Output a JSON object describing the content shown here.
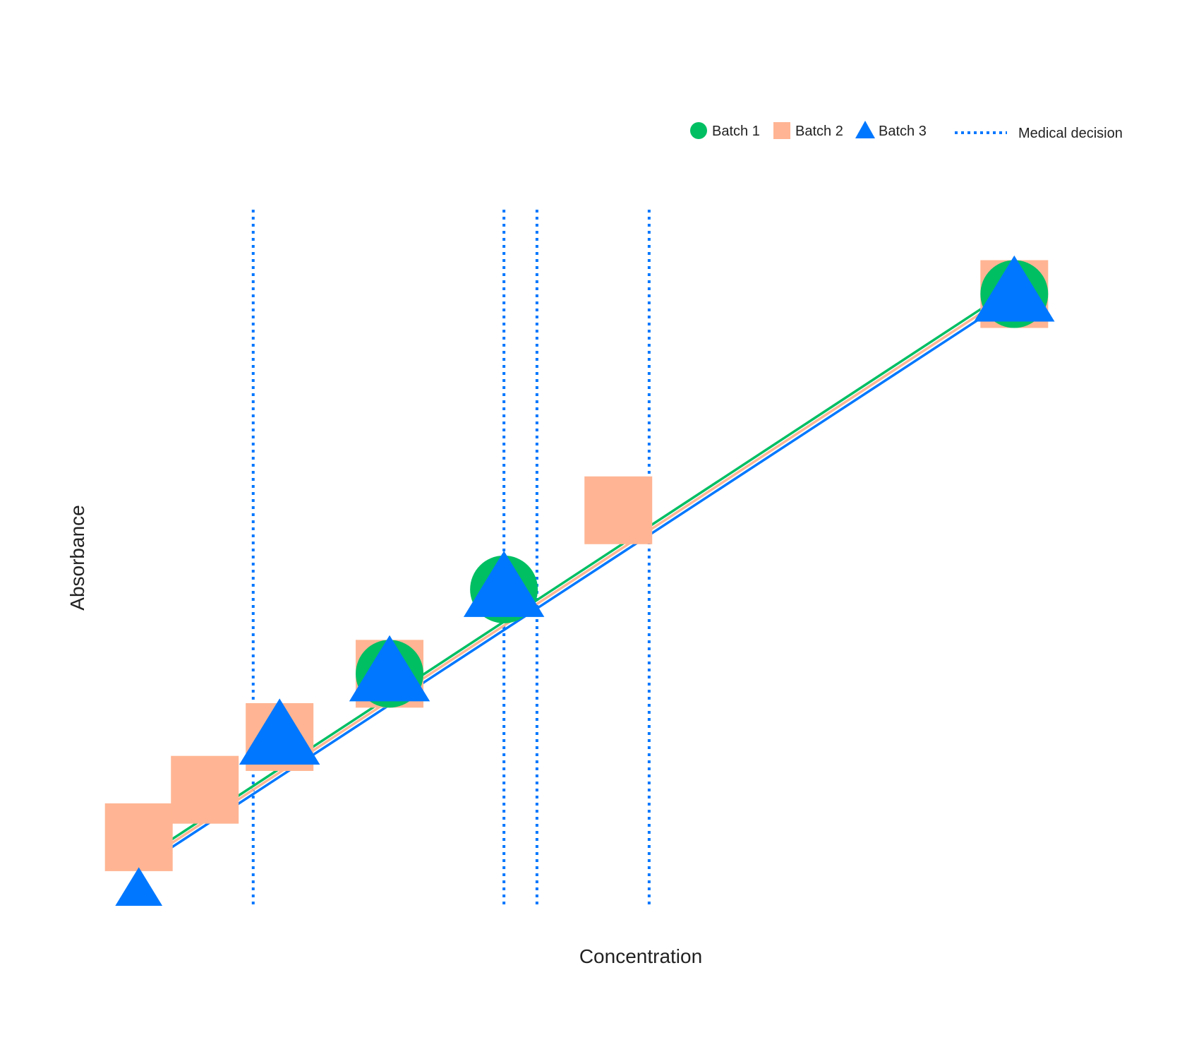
{
  "chart_data": {
    "type": "scatter",
    "title": "",
    "xlabel": "Concentration",
    "ylabel": "Absorbance",
    "xlim": [
      1,
      23.2
    ],
    "ylim": [
      1,
      14.2
    ],
    "grid": false,
    "axis_ticks_shown": false,
    "legend_position": "top-right",
    "series": [
      {
        "name": "Batch 1",
        "marker": "circle",
        "color": "#00bf63",
        "points": [
          {
            "x": 7.0,
            "y": 5.4
          },
          {
            "x": 9.6,
            "y": 7.0
          },
          {
            "x": 21.2,
            "y": 12.6
          }
        ]
      },
      {
        "name": "Batch 2",
        "marker": "square",
        "color": "#ffb593",
        "points": [
          {
            "x": 1.3,
            "y": 2.3
          },
          {
            "x": 2.8,
            "y": 3.2
          },
          {
            "x": 4.5,
            "y": 4.2
          },
          {
            "x": 7.0,
            "y": 5.4
          },
          {
            "x": 12.2,
            "y": 8.5
          },
          {
            "x": 21.2,
            "y": 12.6
          }
        ]
      },
      {
        "name": "Batch 3",
        "marker": "triangle",
        "color": "#0077ff",
        "points": [
          {
            "x": 1.3,
            "y": 1.0
          },
          {
            "x": 4.5,
            "y": 4.2
          },
          {
            "x": 7.0,
            "y": 5.4
          },
          {
            "x": 9.6,
            "y": 7.0
          },
          {
            "x": 21.2,
            "y": 12.6
          }
        ]
      }
    ],
    "fit_lines": [
      {
        "series": "Batch 1",
        "color": "#00bf63",
        "from": {
          "x": 1.3,
          "y": 1.85
        },
        "to": {
          "x": 21.2,
          "y": 12.73
        }
      },
      {
        "series": "Batch 2",
        "color": "#ffb593",
        "from": {
          "x": 1.3,
          "y": 1.78
        },
        "to": {
          "x": 21.2,
          "y": 12.65
        }
      },
      {
        "series": "Batch 3",
        "color": "#0077ff",
        "from": {
          "x": 1.3,
          "y": 1.7
        },
        "to": {
          "x": 21.2,
          "y": 12.56
        }
      }
    ],
    "reference_lines": {
      "name": "Medical decision",
      "color": "#0077ff",
      "style": "dotted",
      "x": [
        3.9,
        9.6,
        10.35,
        12.9
      ]
    }
  }
}
